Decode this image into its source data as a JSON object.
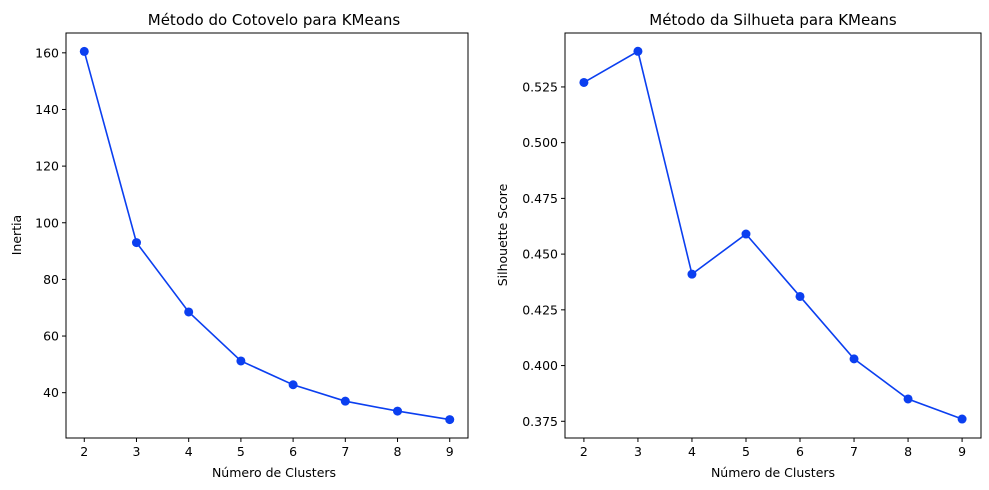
{
  "colors": {
    "series": "#0b3ff0",
    "background": "#ffffff",
    "axes": "#000000"
  },
  "chart_data": [
    {
      "type": "line",
      "title": "Método do Cotovelo para KMeans",
      "xlabel": "Número de Clusters",
      "ylabel": "Inertia",
      "x": [
        2,
        3,
        4,
        5,
        6,
        7,
        8,
        9
      ],
      "series": [
        {
          "values": [
            160.5,
            93.0,
            68.5,
            51.2,
            42.8,
            37.0,
            33.5,
            30.5
          ],
          "marker": "circle"
        }
      ],
      "xticks": [
        2,
        3,
        4,
        5,
        6,
        7,
        8,
        9
      ],
      "yticks": [
        40,
        60,
        80,
        100,
        120,
        140,
        160
      ],
      "xlim": [
        1.65,
        9.35
      ],
      "ylim": [
        24.0,
        167.0
      ],
      "grid": false
    },
    {
      "type": "line",
      "title": "Método da Silhueta para KMeans",
      "xlabel": "Número de Clusters",
      "ylabel": "Silhouette Score",
      "x": [
        2,
        3,
        4,
        5,
        6,
        7,
        8,
        9
      ],
      "series": [
        {
          "values": [
            0.527,
            0.541,
            0.441,
            0.459,
            0.431,
            0.403,
            0.385,
            0.376
          ],
          "marker": "circle"
        }
      ],
      "xticks": [
        2,
        3,
        4,
        5,
        6,
        7,
        8,
        9
      ],
      "xtick_labels": [
        "2",
        "3",
        "4",
        "5",
        "6",
        "7",
        "8",
        "9"
      ],
      "yticks": [
        0.375,
        0.4,
        0.425,
        0.45,
        0.475,
        0.5,
        0.525
      ],
      "ytick_labels": [
        "0.375",
        "0.400",
        "0.425",
        "0.450",
        "0.475",
        "0.500",
        "0.525"
      ],
      "xlim": [
        1.65,
        9.35
      ],
      "ylim": [
        0.3675,
        0.5492
      ],
      "grid": false
    }
  ]
}
